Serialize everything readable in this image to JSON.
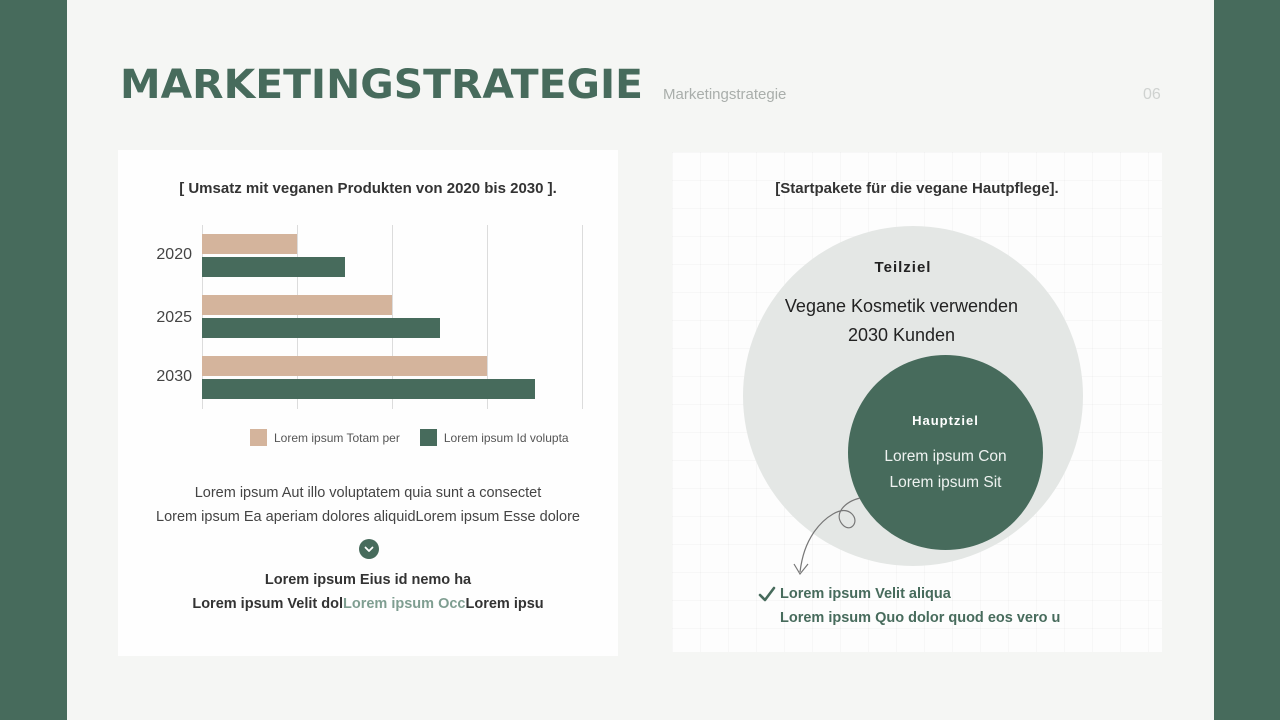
{
  "slide": {
    "title": "MARKETINGSTRATEGIE",
    "subtitle": "Marketingstrategie",
    "page_number": "06",
    "colors": {
      "primary": "#476b5c",
      "secondary": "#d4b49c",
      "background": "#f5f6f4",
      "muted": "#e4e7e5"
    }
  },
  "left_panel": {
    "heading": "[ Umsatz mit veganen Produkten von 2020 bis 2030 ].",
    "body_lines": [
      "Lorem ipsum Aut illo voluptatem quia sunt a consectet",
      "Lorem ipsum Ea aperiam dolores aliquidLorem ipsum Esse dolore"
    ],
    "chevron_icon": "chevron-down-circle-icon",
    "bold_line_1": "Lorem ipsum Eius id nemo ha",
    "bold_line_2_prefix": "Lorem ipsum Velit dol",
    "bold_line_2_accent": "Lorem ipsum Occ",
    "bold_line_2_suffix": "Lorem ipsu"
  },
  "chart_data": {
    "type": "bar",
    "orientation": "horizontal",
    "title": "[ Umsatz mit veganen Produkten von 2020 bis 2030 ].",
    "categories": [
      "2020",
      "2025",
      "2030"
    ],
    "series": [
      {
        "name": "Lorem ipsum Totam per",
        "color": "#d4b49c",
        "values": [
          1,
          2,
          3
        ]
      },
      {
        "name": "Lorem ipsum Id volupta",
        "color": "#476b5c",
        "values": [
          1.5,
          2.5,
          3.5
        ]
      }
    ],
    "xlabel": "",
    "ylabel": "",
    "xlim": [
      0,
      4
    ],
    "x_tick_labels_shown": false,
    "grid": "vertical",
    "legend_position": "bottom"
  },
  "right_panel": {
    "heading": "[Startpakete für die vegane Hautpflege].",
    "outer_circle": {
      "title": "Teilziel",
      "line_1": "Vegane Kosmetik verwenden",
      "line_2": "2030 Kunden"
    },
    "inner_circle": {
      "title": "Hauptziel",
      "line_1": "Lorem ipsum Con",
      "line_2": "Lorem ipsum Sit"
    },
    "arrow_icon": "curly-arrow-down-icon",
    "checklist": {
      "icon": "checkmark-icon",
      "line_1": "Lorem ipsum Velit aliqua",
      "line_2": "Lorem ipsum Quo dolor quod eos vero u"
    }
  }
}
